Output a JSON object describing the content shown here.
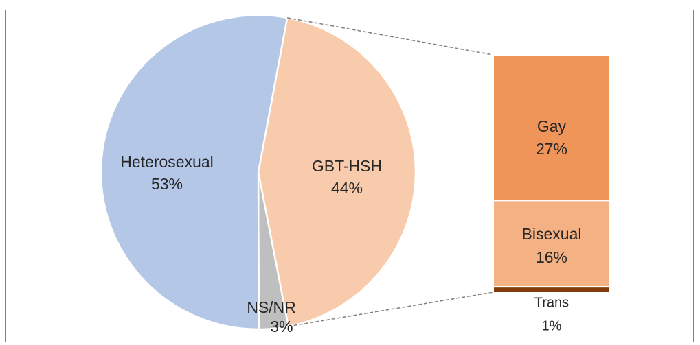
{
  "chart_data": {
    "type": "pie",
    "categories": [
      "Heterosexual",
      "GBT-HSH",
      "NS/NR"
    ],
    "values": [
      53,
      44,
      3
    ],
    "value_labels": [
      "53%",
      "44%",
      "3%"
    ],
    "colors": [
      "#b4c7e7",
      "#f8cbad",
      "#bfbfbf"
    ],
    "bar": {
      "categories": [
        "Gay",
        "Bisexual",
        "Trans"
      ],
      "values": [
        27,
        16,
        1
      ],
      "value_labels": [
        "27%",
        "16%",
        "1%"
      ],
      "colors": [
        "#f0955a",
        "#f4b183",
        "#843c0c"
      ]
    }
  }
}
